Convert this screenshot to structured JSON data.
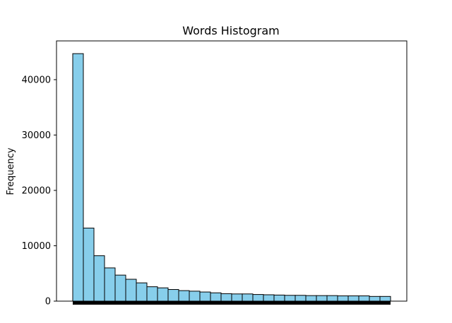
{
  "colors": {
    "bar_fill": "#87ceeb",
    "bar_edge": "#000000",
    "axis": "#000000",
    "background": "#ffffff"
  },
  "chart_data": {
    "type": "bar",
    "title": "Words Histogram",
    "xlabel": "",
    "ylabel": "Frequency",
    "ylim": [
      0,
      47000
    ],
    "yticks": [
      0,
      10000,
      20000,
      30000,
      40000
    ],
    "yticklabels": [
      "0",
      "10000",
      "20000",
      "30000",
      "40000"
    ],
    "grid": false,
    "legend": "none",
    "bins": 30,
    "values": [
      44700,
      13200,
      8200,
      6000,
      4700,
      3950,
      3300,
      2600,
      2400,
      2100,
      1900,
      1800,
      1650,
      1500,
      1350,
      1300,
      1300,
      1200,
      1150,
      1100,
      1050,
      1050,
      1000,
      1000,
      1000,
      950,
      950,
      950,
      850,
      850
    ]
  }
}
